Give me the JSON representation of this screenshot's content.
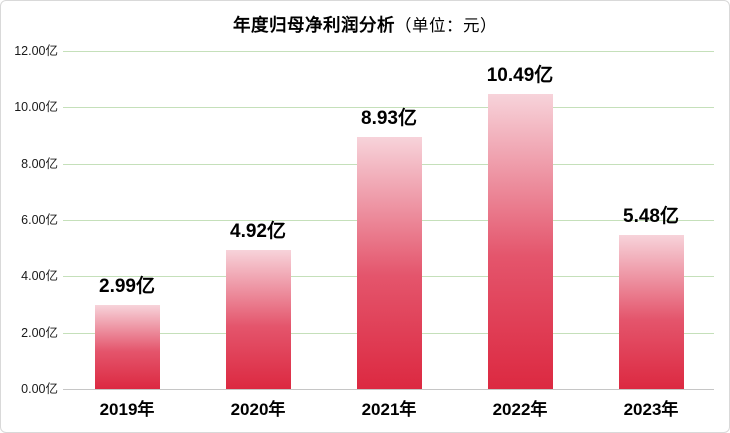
{
  "title": {
    "main": "年度归母净利润分析",
    "unit": "（单位：元）"
  },
  "chart_data": {
    "type": "bar",
    "title": "年度归母净利润分析",
    "subtitle_unit": "（单位：元）",
    "categories": [
      "2019年",
      "2020年",
      "2021年",
      "2022年",
      "2023年"
    ],
    "values": [
      2.99,
      4.92,
      8.93,
      10.49,
      5.48
    ],
    "value_labels": [
      "2.99亿",
      "4.92亿",
      "8.93亿",
      "10.49亿",
      "5.48亿"
    ],
    "unit": "亿",
    "xlabel": "",
    "ylabel": "",
    "ylim": [
      0,
      12
    ],
    "y_ticks": [
      {
        "value": 0,
        "label": "0.00亿"
      },
      {
        "value": 2,
        "label": "2.00亿"
      },
      {
        "value": 4,
        "label": "4.00亿"
      },
      {
        "value": 6,
        "label": "6.00亿"
      },
      {
        "value": 8,
        "label": "8.00亿"
      },
      {
        "value": 10,
        "label": "10.00亿"
      },
      {
        "value": 12,
        "label": "12.00亿"
      }
    ],
    "grid": "horizontal",
    "legend": "none",
    "colors": {
      "bar_gradient_top": "#F7D3DA",
      "bar_gradient_mid": "#E4556C",
      "bar_gradient_bottom": "#DC2941",
      "gridline": "#C5E0BA",
      "baseline": "#C6C6C6",
      "text": "#000000",
      "frame_border": "#D9D9D9"
    }
  }
}
